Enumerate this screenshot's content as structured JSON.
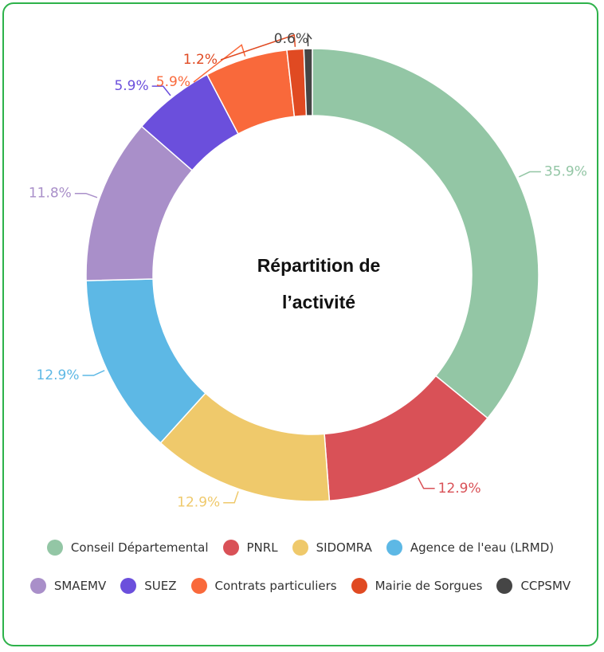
{
  "chart_data": {
    "type": "donut",
    "title": "Répartition de l’activité",
    "categories": [
      "Conseil Départemental",
      "PNRL",
      "SIDOMRA",
      "Agence de l'eau (LRMD)",
      "SMAEMV",
      "SUEZ",
      "Contrats particuliers",
      "Mairie de Sorgues",
      "CCPSMV"
    ],
    "values": [
      35.9,
      12.9,
      12.9,
      12.9,
      11.8,
      5.9,
      5.9,
      1.2,
      0.6
    ],
    "value_labels": [
      "35.9%",
      "12.9%",
      "12.9%",
      "12.9%",
      "11.8%",
      "5.9%",
      "5.9%",
      "1.2%",
      "0.6%"
    ],
    "colors": [
      "#93c6a5",
      "#d95157",
      "#efc96b",
      "#5db8e5",
      "#a98fc9",
      "#6b4fdc",
      "#f9693b",
      "#e04a22",
      "#454545"
    ],
    "legend": "bottom"
  }
}
